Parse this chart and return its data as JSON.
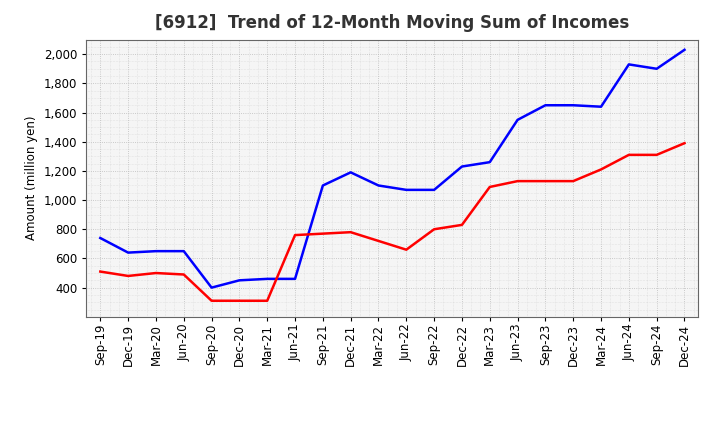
{
  "title": "[6912]  Trend of 12-Month Moving Sum of Incomes",
  "ylabel": "Amount (million yen)",
  "x_labels": [
    "Sep-19",
    "Dec-19",
    "Mar-20",
    "Jun-20",
    "Sep-20",
    "Dec-20",
    "Mar-21",
    "Jun-21",
    "Sep-21",
    "Dec-21",
    "Mar-22",
    "Jun-22",
    "Sep-22",
    "Dec-22",
    "Mar-23",
    "Jun-23",
    "Sep-23",
    "Dec-23",
    "Mar-24",
    "Jun-24",
    "Sep-24",
    "Dec-24"
  ],
  "ordinary_income": [
    740,
    640,
    650,
    650,
    400,
    450,
    460,
    460,
    1100,
    1190,
    1100,
    1070,
    1070,
    1230,
    1260,
    1550,
    1650,
    1650,
    1640,
    1930,
    1900,
    2030
  ],
  "net_income": [
    510,
    480,
    500,
    490,
    310,
    310,
    310,
    760,
    770,
    780,
    720,
    660,
    800,
    830,
    1090,
    1130,
    1130,
    1130,
    1210,
    1310,
    1310,
    1390
  ],
  "ordinary_color": "#0000FF",
  "net_color": "#FF0000",
  "ylim_min": 200,
  "ylim_max": 2100,
  "yticks": [
    400,
    600,
    800,
    1000,
    1200,
    1400,
    1600,
    1800,
    2000
  ],
  "background_color": "#FFFFFF",
  "plot_bg_color": "#F5F5F5",
  "grid_color": "#BBBBBB",
  "title_color": "#333333",
  "title_fontsize": 12,
  "axis_fontsize": 8.5,
  "legend_fontsize": 9.5,
  "line_width": 1.8
}
